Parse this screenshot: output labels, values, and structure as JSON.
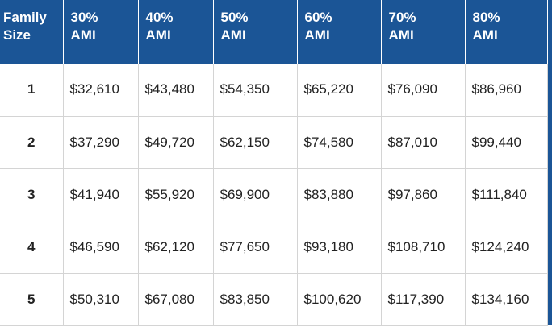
{
  "headers": [
    [
      "Family",
      "Size"
    ],
    [
      "30%",
      "AMI"
    ],
    [
      "40%",
      "AMI"
    ],
    [
      "50%",
      "AMI"
    ],
    [
      "60%",
      "AMI"
    ],
    [
      "70%",
      "AMI"
    ],
    [
      "80%",
      "AMI"
    ]
  ],
  "rows": [
    [
      "1",
      "$32,610",
      "$43,480",
      "$54,350",
      "$65,220",
      "$76,090",
      "$86,960"
    ],
    [
      "2",
      "$37,290",
      "$49,720",
      "$62,150",
      "$74,580",
      "$87,010",
      "$99,440"
    ],
    [
      "3",
      "$41,940",
      "$55,920",
      "$69,900",
      "$83,880",
      "$97,860",
      "$111,840"
    ],
    [
      "4",
      "$46,590",
      "$62,120",
      "$77,650",
      "$93,180",
      "$108,710",
      "$124,240"
    ],
    [
      "5",
      "$50,310",
      "$67,080",
      "$83,850",
      "$100,620",
      "$117,390",
      "$134,160"
    ]
  ],
  "colors": {
    "header_bg": "#1b5596",
    "header_text": "#ffffff",
    "grid_line": "#d4d4d4"
  }
}
